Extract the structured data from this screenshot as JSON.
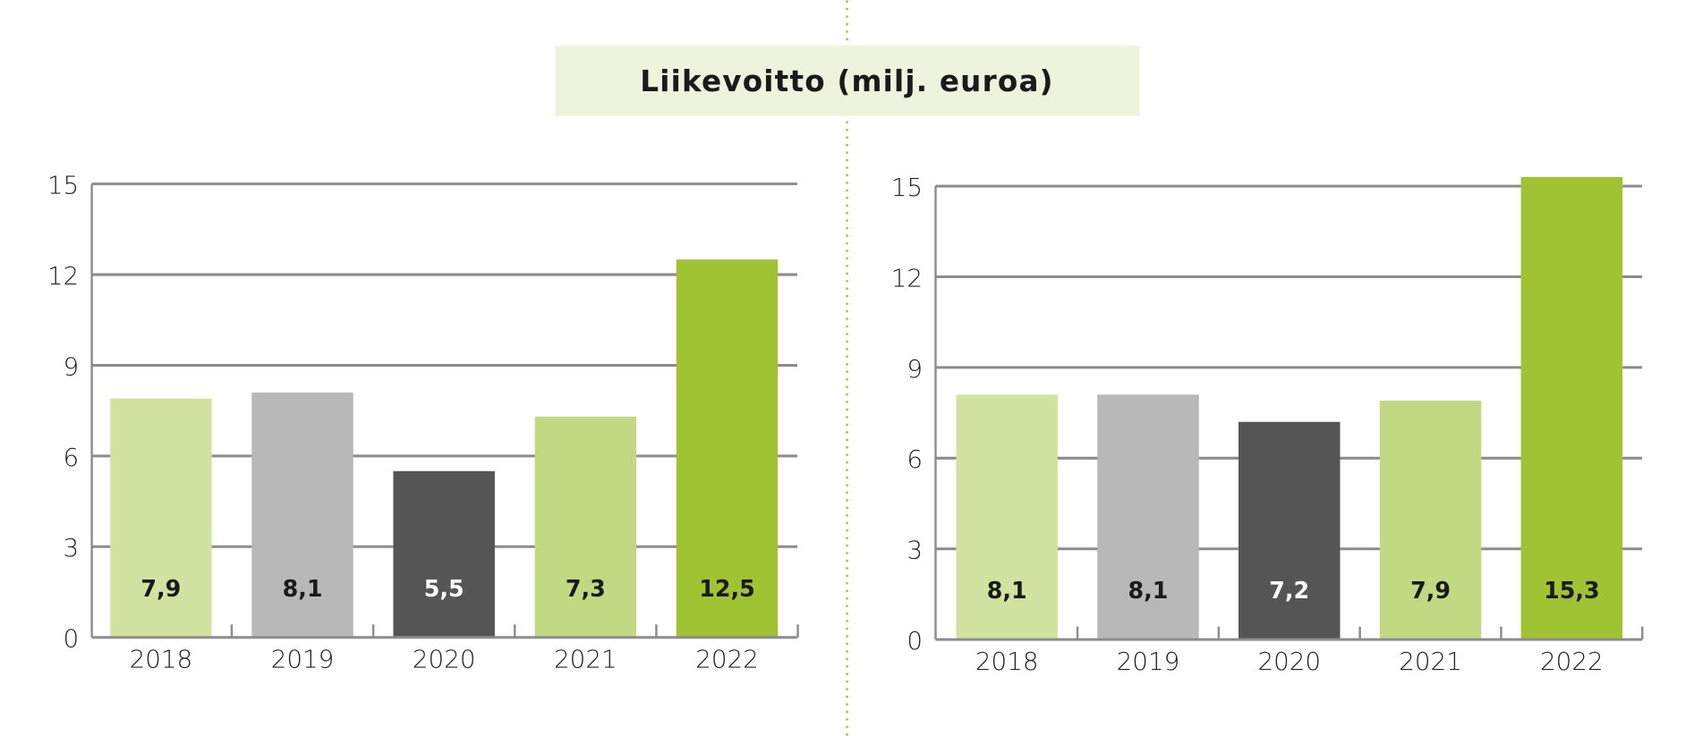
{
  "title": "Liikevoitto (milj. euroa)",
  "colors": {
    "title_bg": "#eef3de",
    "divider": "#a0c334",
    "grid": "#8c8c8c",
    "bars": [
      "#d2e2a1",
      "#b8b8b8",
      "#555555",
      "#c2d883",
      "#a0c334"
    ],
    "label_colors": [
      "#1a1a1a",
      "#1a1a1a",
      "#ffffff",
      "#1a1a1a",
      "#1a1a1a"
    ]
  },
  "chart_data": [
    {
      "type": "bar",
      "title": "Liikevoitto (milj. euroa)",
      "categories": [
        "2018",
        "2019",
        "2020",
        "2021",
        "2022"
      ],
      "values": [
        7.9,
        8.1,
        5.5,
        7.3,
        12.5
      ],
      "data_labels": [
        "7,9",
        "8,1",
        "5,5",
        "7,3",
        "12,5"
      ],
      "yticks": [
        0,
        3,
        6,
        9,
        12,
        15
      ],
      "ylim": [
        0,
        15
      ],
      "grid": true
    },
    {
      "type": "bar",
      "title": "Liikevoitto (milj. euroa)",
      "categories": [
        "2018",
        "2019",
        "2020",
        "2021",
        "2022"
      ],
      "values": [
        8.1,
        8.1,
        7.2,
        7.9,
        15.3
      ],
      "data_labels": [
        "8,1",
        "8,1",
        "7,2",
        "7,9",
        "15,3"
      ],
      "yticks": [
        0,
        3,
        6,
        9,
        12,
        15
      ],
      "ylim": [
        0,
        15
      ],
      "grid": true
    }
  ]
}
